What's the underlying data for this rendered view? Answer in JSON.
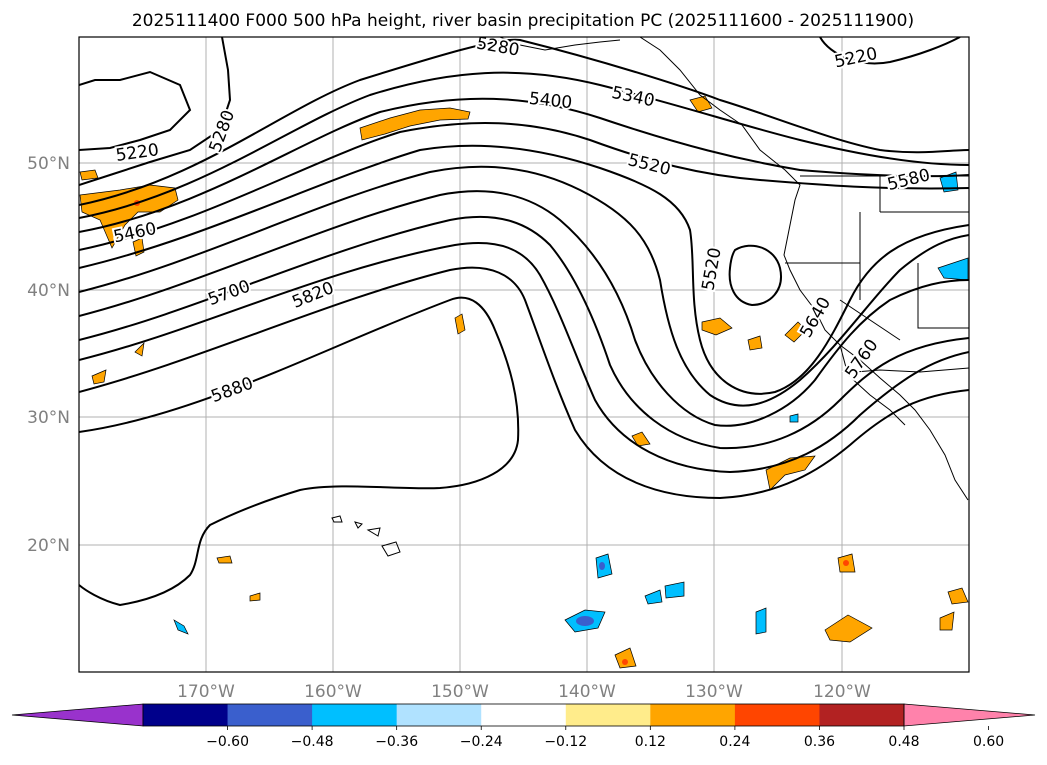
{
  "title": "2025111400 F000 500 hPa height, river basin precipitation PC (2025111600 - 2025111900)",
  "map": {
    "lon_range": [
      -180,
      -110
    ],
    "lat_range": [
      10,
      60
    ],
    "lat_ticks": [
      {
        "value": 50,
        "label": "50°N"
      },
      {
        "value": 40,
        "label": "40°N"
      },
      {
        "value": 30,
        "label": "30°N"
      },
      {
        "value": 20,
        "label": "20°N"
      }
    ],
    "lon_ticks": [
      {
        "value": -170,
        "label": "170°W"
      },
      {
        "value": -160,
        "label": "160°W"
      },
      {
        "value": -150,
        "label": "150°W"
      },
      {
        "value": -140,
        "label": "140°W"
      },
      {
        "value": -130,
        "label": "130°W"
      },
      {
        "value": -120,
        "label": "120°W"
      }
    ]
  },
  "contour_labels": [
    "5280",
    "5220",
    "5280",
    "5400",
    "5340",
    "5220",
    "5520",
    "5460",
    "5580",
    "5520",
    "5700",
    "5820",
    "5640",
    "5880",
    "5760"
  ],
  "colorbar": {
    "colors": [
      "#9932CC",
      "#00008B",
      "#3A5FCD",
      "#00BFFF",
      "#B0E2FF",
      "#FFFFFF",
      "#FFEC8B",
      "#FFA500",
      "#FF4500",
      "#B22222",
      "#FF82AB"
    ],
    "tick_labels": [
      "−0.60",
      "−0.48",
      "−0.36",
      "−0.24",
      "−0.12",
      "0.12",
      "0.24",
      "0.36",
      "0.48",
      "0.60"
    ]
  },
  "colors": {
    "orange": "#FFA500",
    "red": "#FF4500",
    "lightblue": "#00BFFF",
    "blue": "#3A5FCD",
    "grid": "#b0b0b0"
  }
}
